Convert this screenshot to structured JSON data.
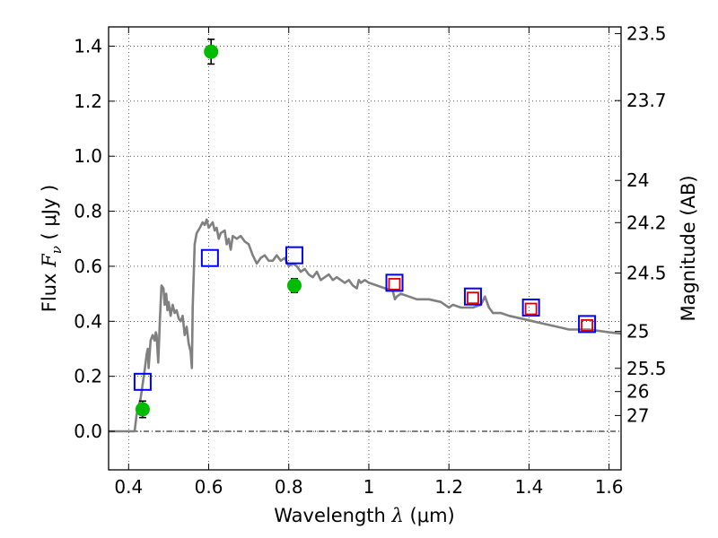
{
  "chart_data": {
    "type": "scatter",
    "xlabel": "Wavelength",
    "xlabel_symbol": "λ",
    "xlabel_unit": "(μm)",
    "ylabel": "Flux",
    "ylabel_symbol": "F",
    "ylabel_subscript": "ν",
    "ylabel_unit": "( μJy )",
    "y2label": "Magnitude (AB)",
    "xlim": [
      0.35,
      1.63
    ],
    "ylim": [
      -0.14,
      1.47
    ],
    "grid": true,
    "x_ticks": [
      0.4,
      0.6,
      0.8,
      1.0,
      1.2,
      1.4,
      1.6
    ],
    "x_tick_labels": [
      "0.4",
      "0.6",
      "0.8",
      "1",
      "1.2",
      "1.4",
      "1.6"
    ],
    "y_ticks": [
      0.0,
      0.2,
      0.4,
      0.6,
      0.8,
      1.0,
      1.2,
      1.4
    ],
    "y_tick_labels": [
      "0.0",
      "0.2",
      "0.4",
      "0.6",
      "0.8",
      "1.0",
      "1.2",
      "1.4"
    ],
    "mag_ticks": [
      {
        "label": "23.5",
        "mag": 23.5
      },
      {
        "label": "23.7",
        "mag": 23.7
      },
      {
        "label": "24",
        "mag": 24.0
      },
      {
        "label": "24.2",
        "mag": 24.2
      },
      {
        "label": "24.5",
        "mag": 24.5
      },
      {
        "label": "25",
        "mag": 25.0
      },
      {
        "label": "25.5",
        "mag": 25.5
      },
      {
        "label": "26",
        "mag": 26.0
      },
      {
        "label": "27",
        "mag": 27.0
      }
    ],
    "series": [
      {
        "name": "model_sed",
        "kind": "line",
        "color": "#808080",
        "points": [
          [
            0.35,
            0.0
          ],
          [
            0.415,
            0.0
          ],
          [
            0.42,
            0.06
          ],
          [
            0.43,
            0.12
          ],
          [
            0.44,
            0.22
          ],
          [
            0.445,
            0.28
          ],
          [
            0.448,
            0.3
          ],
          [
            0.45,
            0.23
          ],
          [
            0.455,
            0.33
          ],
          [
            0.46,
            0.35
          ],
          [
            0.465,
            0.33
          ],
          [
            0.468,
            0.36
          ],
          [
            0.47,
            0.35
          ],
          [
            0.474,
            0.25
          ],
          [
            0.478,
            0.4
          ],
          [
            0.482,
            0.53
          ],
          [
            0.487,
            0.52
          ],
          [
            0.49,
            0.46
          ],
          [
            0.494,
            0.5
          ],
          [
            0.497,
            0.44
          ],
          [
            0.5,
            0.47
          ],
          [
            0.505,
            0.42
          ],
          [
            0.51,
            0.46
          ],
          [
            0.515,
            0.43
          ],
          [
            0.52,
            0.44
          ],
          [
            0.525,
            0.41
          ],
          [
            0.53,
            0.4
          ],
          [
            0.535,
            0.42
          ],
          [
            0.54,
            0.35
          ],
          [
            0.545,
            0.38
          ],
          [
            0.55,
            0.32
          ],
          [
            0.555,
            0.29
          ],
          [
            0.558,
            0.23
          ],
          [
            0.56,
            0.45
          ],
          [
            0.565,
            0.68
          ],
          [
            0.57,
            0.72
          ],
          [
            0.578,
            0.74
          ],
          [
            0.585,
            0.76
          ],
          [
            0.59,
            0.75
          ],
          [
            0.595,
            0.77
          ],
          [
            0.6,
            0.74
          ],
          [
            0.61,
            0.76
          ],
          [
            0.615,
            0.73
          ],
          [
            0.62,
            0.74
          ],
          [
            0.625,
            0.7
          ],
          [
            0.63,
            0.72
          ],
          [
            0.64,
            0.73
          ],
          [
            0.645,
            0.68
          ],
          [
            0.65,
            0.7
          ],
          [
            0.655,
            0.66
          ],
          [
            0.66,
            0.71
          ],
          [
            0.67,
            0.7
          ],
          [
            0.68,
            0.71
          ],
          [
            0.69,
            0.69
          ],
          [
            0.7,
            0.68
          ],
          [
            0.71,
            0.64
          ],
          [
            0.72,
            0.61
          ],
          [
            0.73,
            0.63
          ],
          [
            0.74,
            0.64
          ],
          [
            0.75,
            0.62
          ],
          [
            0.76,
            0.62
          ],
          [
            0.77,
            0.64
          ],
          [
            0.78,
            0.62
          ],
          [
            0.79,
            0.63
          ],
          [
            0.8,
            0.6
          ],
          [
            0.81,
            0.61
          ],
          [
            0.82,
            0.6
          ],
          [
            0.83,
            0.58
          ],
          [
            0.84,
            0.59
          ],
          [
            0.85,
            0.57
          ],
          [
            0.86,
            0.56
          ],
          [
            0.87,
            0.58
          ],
          [
            0.88,
            0.55
          ],
          [
            0.89,
            0.56
          ],
          [
            0.9,
            0.57
          ],
          [
            0.91,
            0.55
          ],
          [
            0.92,
            0.56
          ],
          [
            0.93,
            0.55
          ],
          [
            0.94,
            0.54
          ],
          [
            0.95,
            0.55
          ],
          [
            0.96,
            0.53
          ],
          [
            0.97,
            0.52
          ],
          [
            0.975,
            0.55
          ],
          [
            0.98,
            0.54
          ],
          [
            0.99,
            0.55
          ],
          [
            1.0,
            0.54
          ],
          [
            1.02,
            0.53
          ],
          [
            1.04,
            0.52
          ],
          [
            1.06,
            0.51
          ],
          [
            1.065,
            0.48
          ],
          [
            1.07,
            0.49
          ],
          [
            1.08,
            0.5
          ],
          [
            1.1,
            0.49
          ],
          [
            1.12,
            0.48
          ],
          [
            1.15,
            0.48
          ],
          [
            1.18,
            0.47
          ],
          [
            1.19,
            0.46
          ],
          [
            1.2,
            0.45
          ],
          [
            1.21,
            0.46
          ],
          [
            1.23,
            0.45
          ],
          [
            1.26,
            0.45
          ],
          [
            1.28,
            0.46
          ],
          [
            1.29,
            0.49
          ],
          [
            1.3,
            0.45
          ],
          [
            1.31,
            0.43
          ],
          [
            1.33,
            0.43
          ],
          [
            1.35,
            0.42
          ],
          [
            1.38,
            0.41
          ],
          [
            1.41,
            0.4
          ],
          [
            1.44,
            0.39
          ],
          [
            1.47,
            0.38
          ],
          [
            1.5,
            0.37
          ],
          [
            1.55,
            0.37
          ],
          [
            1.6,
            0.36
          ],
          [
            1.63,
            0.355
          ]
        ]
      },
      {
        "name": "model_bandpass_flux",
        "kind": "blue_square",
        "color": "#0000ff",
        "points": [
          [
            0.435,
            0.18
          ],
          [
            0.603,
            0.63
          ],
          [
            0.814,
            0.64
          ],
          [
            1.064,
            0.54
          ],
          [
            1.26,
            0.49
          ],
          [
            1.405,
            0.45
          ],
          [
            1.545,
            0.39
          ]
        ]
      },
      {
        "name": "model_flux_small",
        "kind": "red_square",
        "color": "#dd0000",
        "points": [
          [
            1.064,
            0.535
          ],
          [
            1.26,
            0.485
          ],
          [
            1.405,
            0.445
          ],
          [
            1.545,
            0.385
          ]
        ]
      },
      {
        "name": "observed_flux",
        "kind": "green_circle",
        "color": "#00bb00",
        "points": [
          {
            "x": 0.435,
            "y": 0.08,
            "err": 0.03
          },
          {
            "x": 0.606,
            "y": 1.38,
            "err": 0.045
          },
          {
            "x": 0.814,
            "y": 0.53,
            "err": 0.025
          }
        ]
      }
    ]
  }
}
